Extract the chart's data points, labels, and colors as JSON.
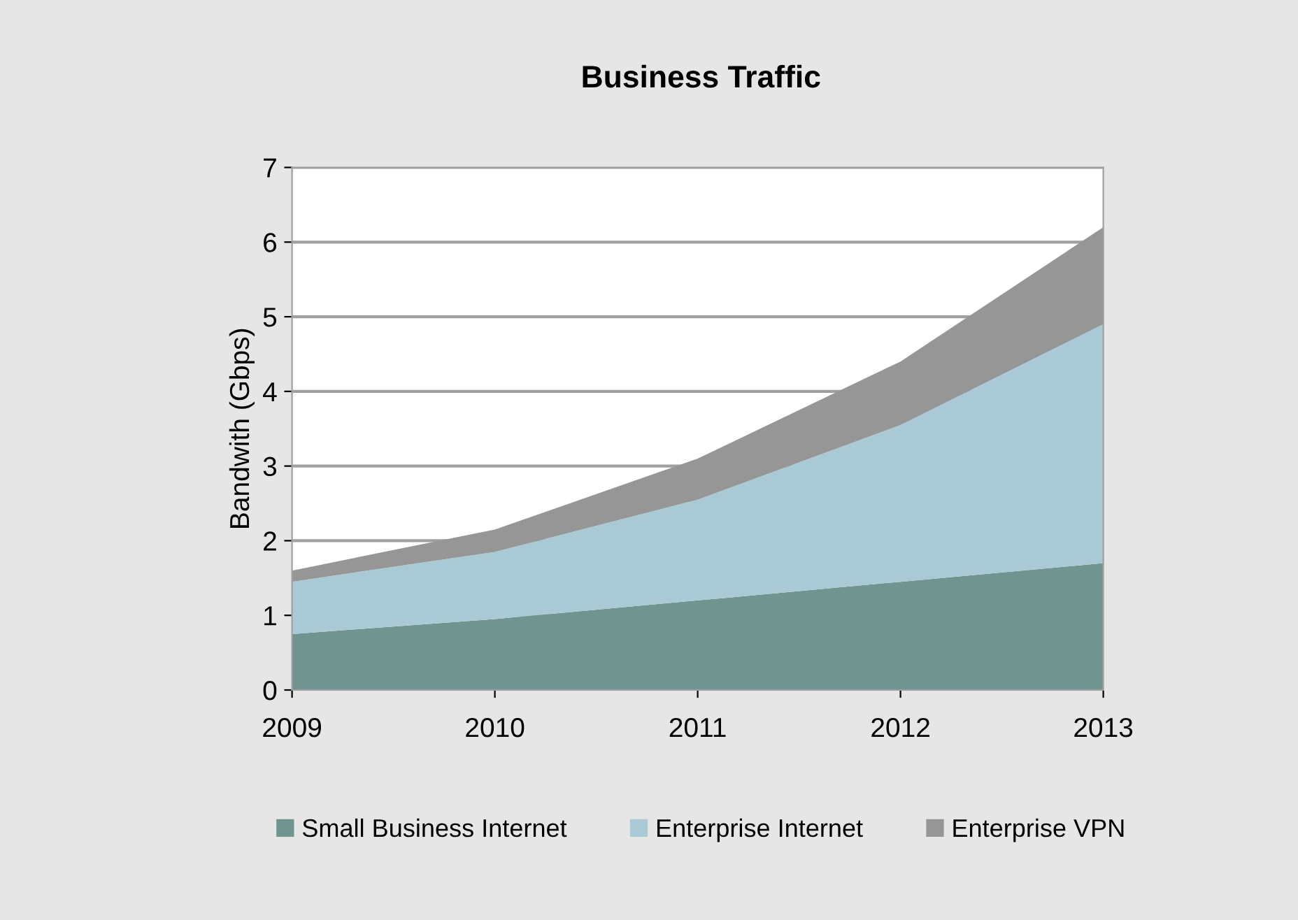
{
  "chart_data": {
    "type": "area",
    "title": "Business Traffic",
    "ylabel": "Bandwith (Gbps)",
    "categories": [
      "2009",
      "2010",
      "2011",
      "2012",
      "2013"
    ],
    "stacked": true,
    "series": [
      {
        "name": "Small Business Internet",
        "color": "#709590",
        "values": [
          0.75,
          0.95,
          1.2,
          1.45,
          1.7
        ]
      },
      {
        "name": "Enterprise Internet",
        "color": "#a9cad5",
        "values": [
          0.7,
          0.9,
          1.35,
          2.1,
          3.2
        ]
      },
      {
        "name": "Enterprise VPN",
        "color": "#969696",
        "values": [
          0.15,
          0.3,
          0.55,
          0.85,
          1.3
        ]
      }
    ],
    "ylim": [
      0,
      7
    ],
    "yticks": [
      0,
      1,
      2,
      3,
      4,
      5,
      6,
      7
    ],
    "grid": "y",
    "legend": "bottom"
  }
}
